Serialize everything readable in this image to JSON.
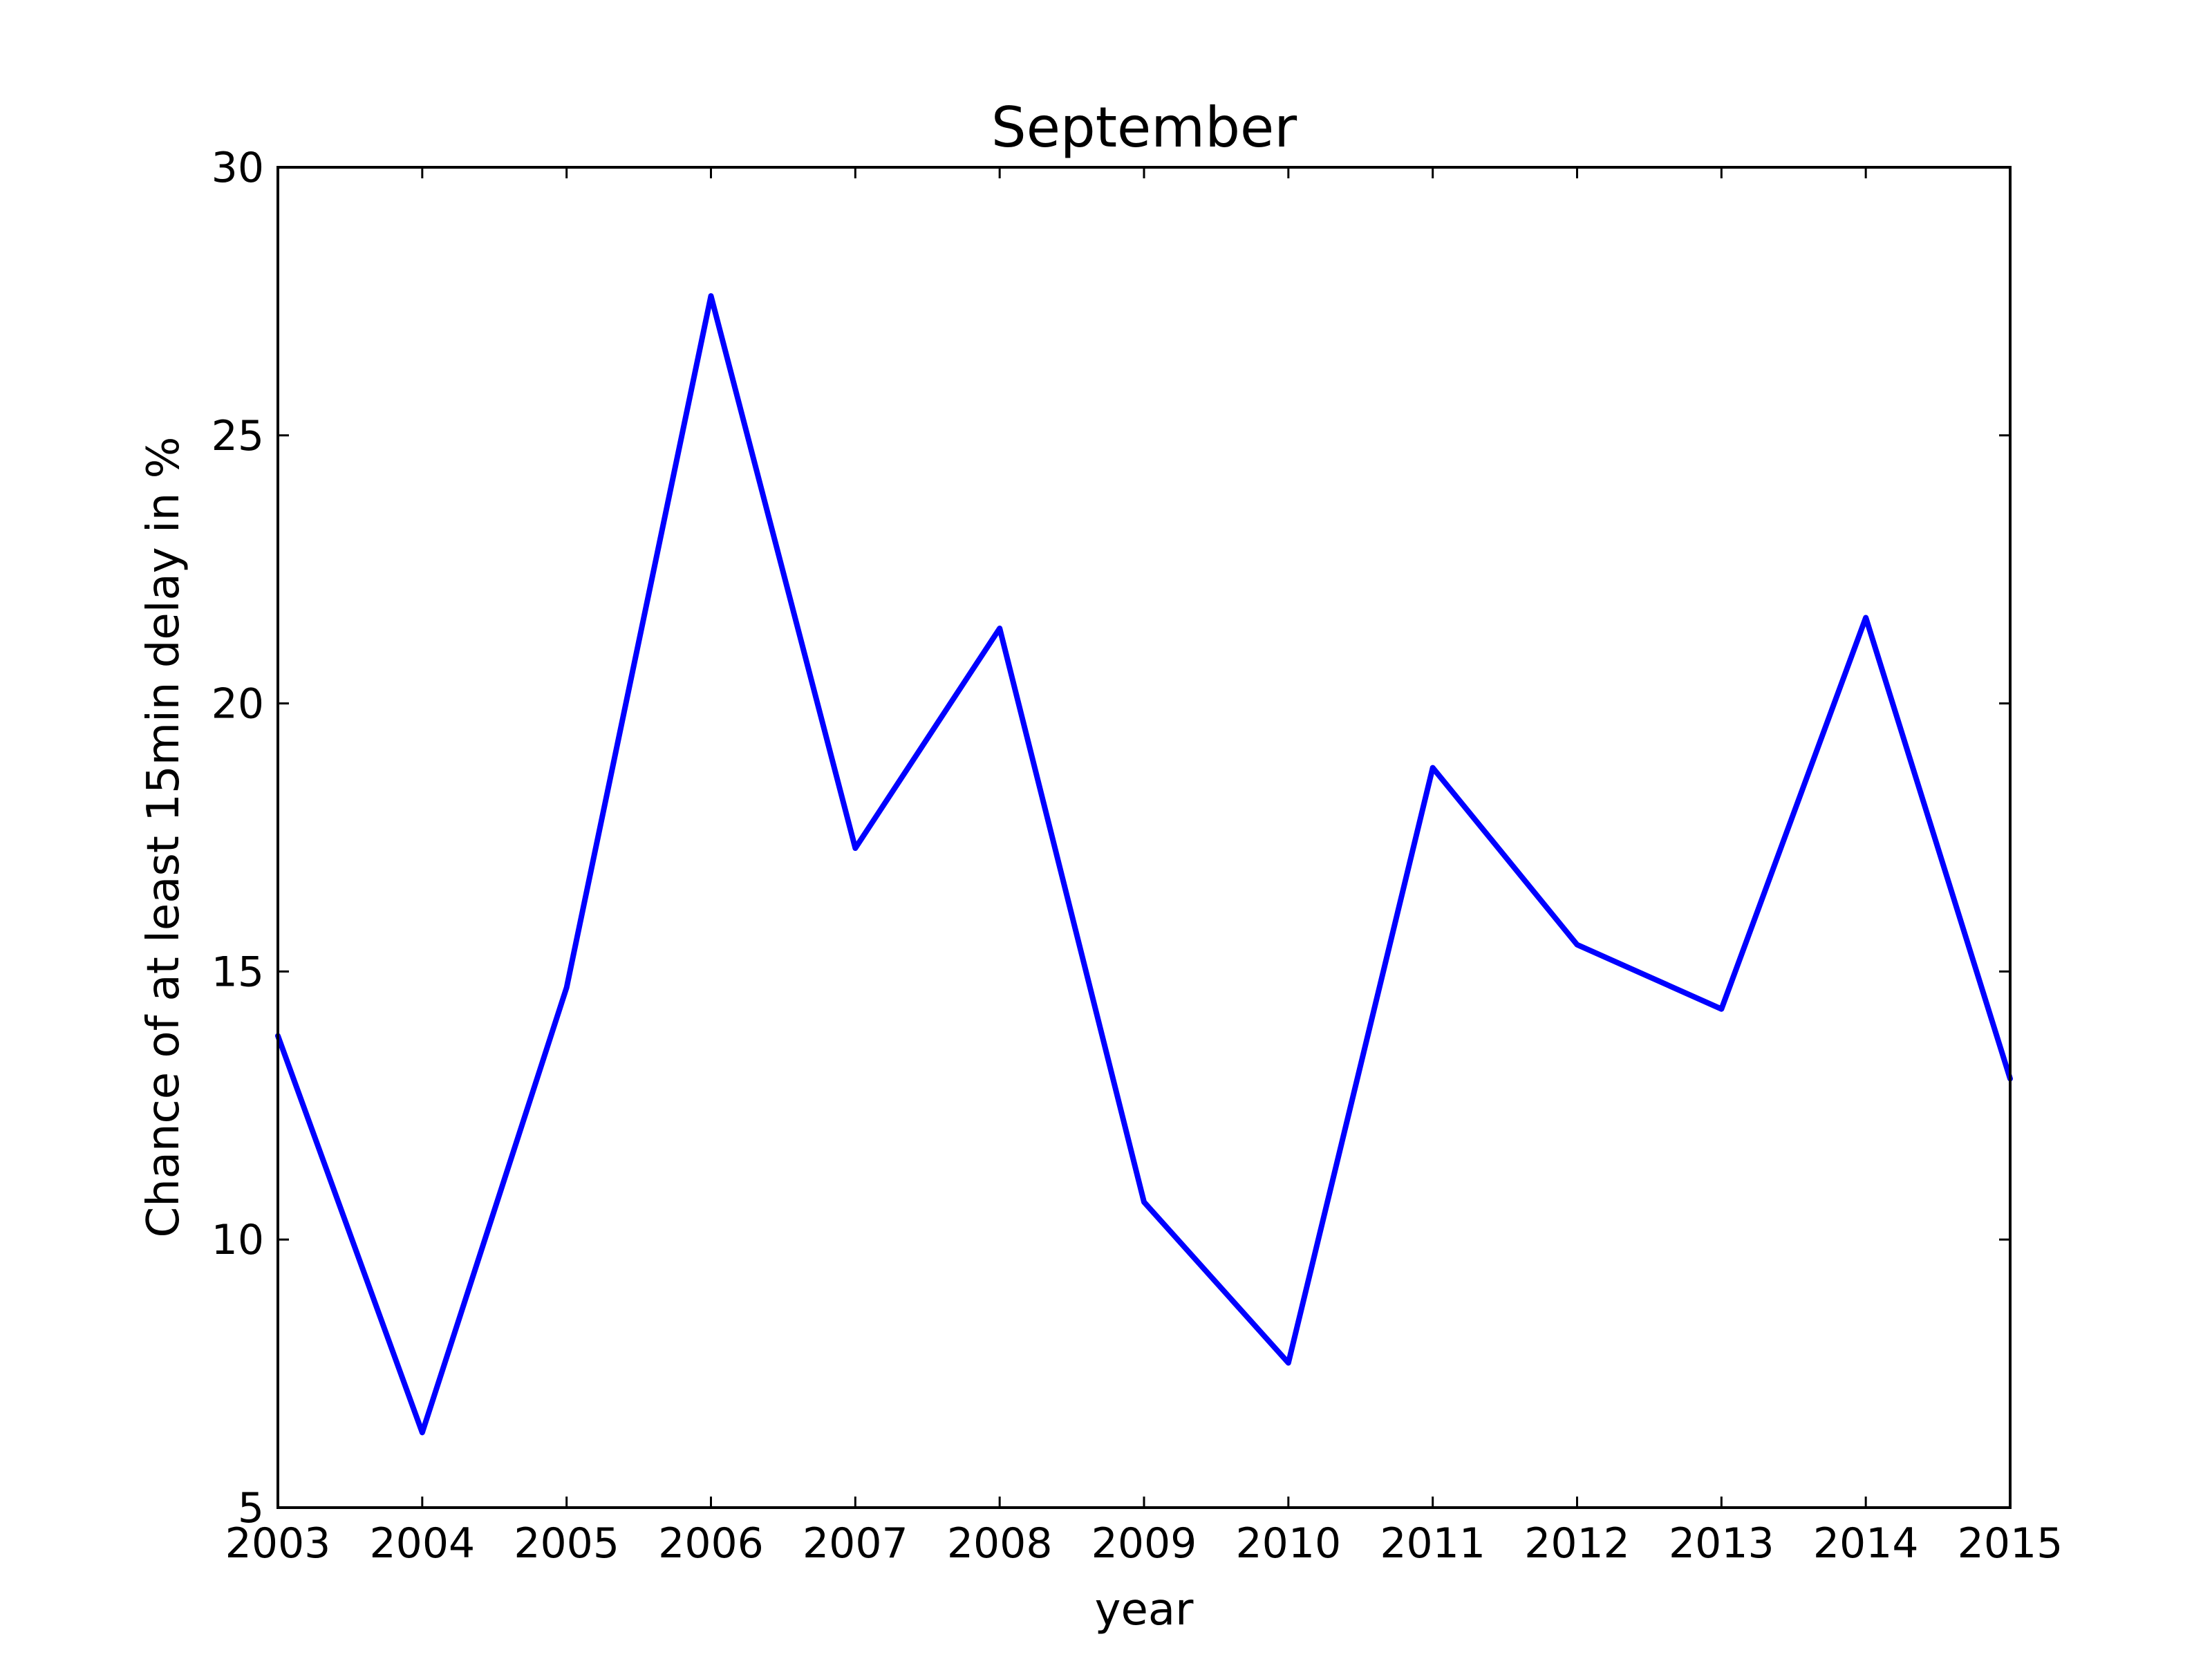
{
  "chart_data": {
    "type": "line",
    "title": "September",
    "xlabel": "year",
    "ylabel": "Chance of at least 15min delay in %",
    "x": [
      2003,
      2004,
      2005,
      2006,
      2007,
      2008,
      2009,
      2010,
      2011,
      2012,
      2013,
      2014,
      2015
    ],
    "series": [
      {
        "values": [
          13.8,
          6.4,
          14.7,
          27.6,
          17.3,
          21.4,
          10.7,
          7.7,
          18.8,
          15.5,
          14.3,
          21.6,
          13.0
        ],
        "color": "#0000ff"
      }
    ],
    "xlim": [
      2003,
      2015
    ],
    "ylim": [
      5,
      30
    ],
    "xticks": [
      "2003",
      "2004",
      "2005",
      "2006",
      "2007",
      "2008",
      "2009",
      "2010",
      "2011",
      "2012",
      "2013",
      "2014",
      "2015"
    ],
    "yticks": [
      "5",
      "10",
      "15",
      "20",
      "25",
      "30"
    ],
    "grid": false,
    "legend": "none"
  }
}
